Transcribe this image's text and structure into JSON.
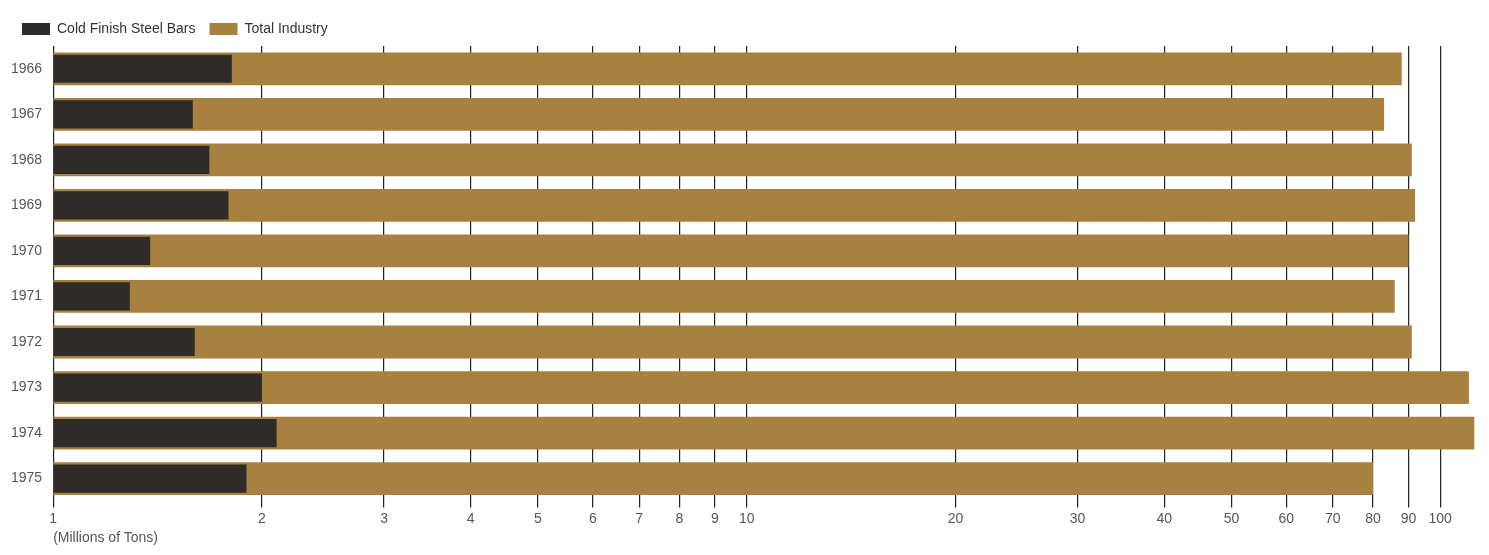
{
  "chart_data": {
    "type": "bar",
    "orientation": "horizontal",
    "log": "x",
    "categories": [
      "1966",
      "1967",
      "1968",
      "1969",
      "1970",
      "1971",
      "1972",
      "1973",
      "1974",
      "1975"
    ],
    "series": [
      {
        "name": "Cold Finish Steel Bars",
        "color": "#2e2b28",
        "values": [
          1.81,
          1.59,
          1.68,
          1.79,
          1.38,
          1.29,
          1.6,
          2.0,
          2.1,
          1.9
        ]
      },
      {
        "name": "Total Industry",
        "color": "#a88140",
        "values": [
          88,
          83,
          91,
          92,
          90,
          86,
          91,
          110,
          112,
          80
        ]
      }
    ],
    "xlim": [
      1,
      113
    ],
    "xticks": [
      1,
      2,
      3,
      4,
      5,
      6,
      7,
      8,
      9,
      10,
      20,
      30,
      40,
      50,
      60,
      70,
      80,
      90,
      100
    ],
    "xlabel": "(Millions of Tons)",
    "grid": "x",
    "legend": "top left"
  }
}
